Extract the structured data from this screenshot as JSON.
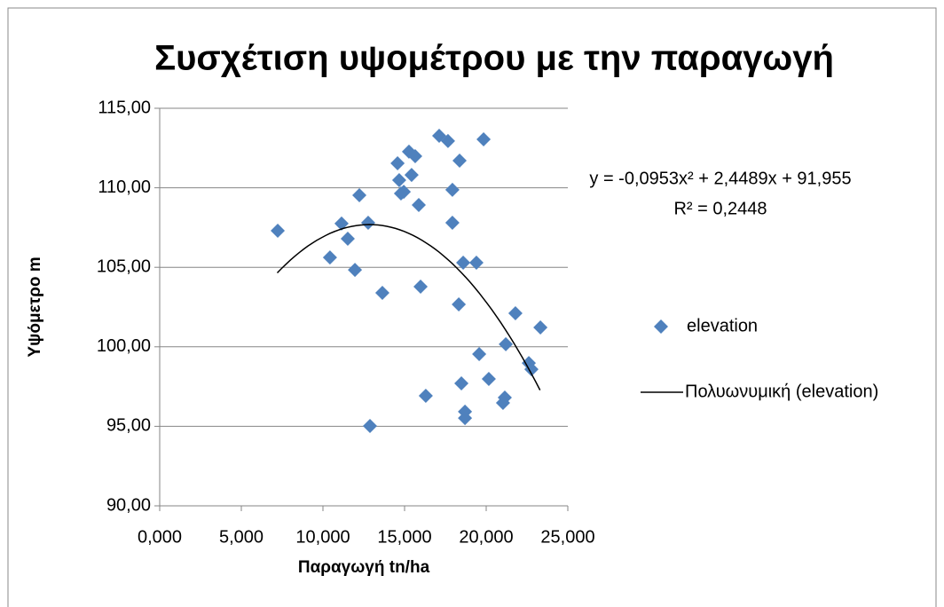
{
  "chart_data": {
    "type": "scatter",
    "title": "Συσχέτιση υψομέτρου με την παραγωγή",
    "x_label": "Παραγωγή tn/ha",
    "y_label": "Υψόμετρο m",
    "series": [
      {
        "name": "elevation",
        "color": "#4f81bd",
        "x": [
          7.23,
          10.43,
          11.14,
          11.52,
          11.96,
          12.23,
          12.77,
          12.88,
          13.64,
          14.57,
          14.67,
          14.78,
          14.95,
          15.27,
          15.43,
          15.65,
          15.87,
          15.98,
          16.3,
          17.12,
          17.66,
          17.93,
          17.93,
          18.37,
          18.32,
          18.48,
          18.59,
          18.7,
          18.7,
          19.4,
          19.57,
          19.84,
          20.16,
          21.03,
          21.14,
          21.2,
          21.79,
          22.61,
          22.77,
          23.32
        ],
        "values": [
          107.3,
          105.62,
          107.75,
          106.8,
          104.84,
          109.53,
          107.8,
          95.02,
          103.39,
          111.54,
          110.48,
          109.64,
          109.75,
          112.27,
          110.81,
          111.99,
          108.92,
          103.78,
          96.92,
          113.27,
          112.94,
          109.87,
          107.8,
          111.71,
          102.67,
          97.7,
          105.29,
          95.92,
          95.52,
          105.29,
          99.54,
          113.05,
          97.98,
          96.47,
          96.81,
          100.16,
          102.11,
          98.98,
          98.59,
          101.22
        ]
      }
    ],
    "trendline": {
      "name": "Πολυωνυμική (elevation)",
      "color": "#000000",
      "coefficients": [
        -0.0953,
        2.4489,
        91.955
      ],
      "x_range": [
        7.2,
        23.3
      ],
      "equation": "y = -0,0953x² + 2,4489x + 91,955",
      "r2": "R² = 0,2448"
    },
    "xlim": [
      0,
      25
    ],
    "ylim": [
      90,
      115
    ],
    "xticks": [
      {
        "value": 0,
        "label": "0,000"
      },
      {
        "value": 5,
        "label": "5,000"
      },
      {
        "value": 10,
        "label": "10,000"
      },
      {
        "value": 15,
        "label": "15,000"
      },
      {
        "value": 20,
        "label": "20,000"
      },
      {
        "value": 25,
        "label": "25,000"
      }
    ],
    "yticks": [
      {
        "value": 90,
        "label": "90,00"
      },
      {
        "value": 95,
        "label": "95,00"
      },
      {
        "value": 100,
        "label": "100,00"
      },
      {
        "value": 105,
        "label": "105,00"
      },
      {
        "value": 110,
        "label": "110,00"
      },
      {
        "value": 115,
        "label": "115,00"
      }
    ],
    "grid": true,
    "legend": "right"
  }
}
